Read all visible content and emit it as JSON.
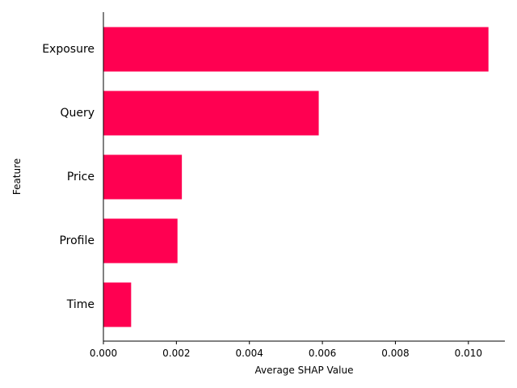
{
  "chart_data": {
    "type": "bar",
    "orientation": "horizontal",
    "categories": [
      "Exposure",
      "Query",
      "Price",
      "Profile",
      "Time"
    ],
    "values": [
      0.01055,
      0.0059,
      0.00215,
      0.00203,
      0.00076
    ],
    "xlabel": "Average SHAP Value",
    "ylabel": "Feature",
    "xlim": [
      0,
      0.011
    ],
    "xticks": [
      "0.000",
      "0.002",
      "0.004",
      "0.006",
      "0.008",
      "0.010"
    ],
    "bar_color": "#ff0051",
    "grid": false,
    "legend": "none"
  }
}
